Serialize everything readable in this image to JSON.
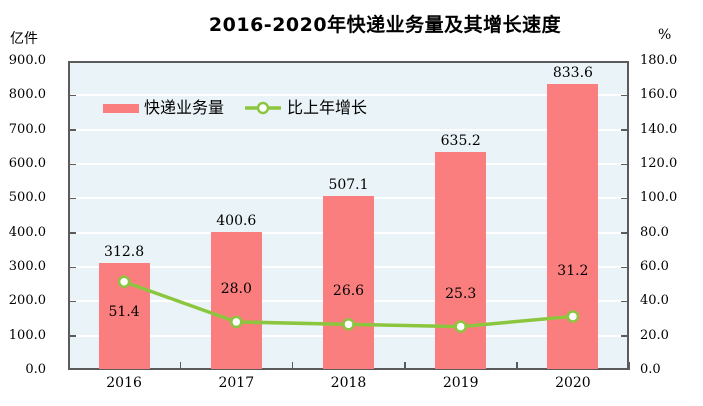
{
  "chart_data": {
    "type": "combo-bar-line",
    "title": "2016-2020年快递业务量及其增长速度",
    "categories": [
      "2016",
      "2017",
      "2018",
      "2019",
      "2020"
    ],
    "series": [
      {
        "name": "快递业务量",
        "type": "bar",
        "axis": "left",
        "values": [
          312.8,
          400.6,
          507.1,
          635.2,
          833.6
        ],
        "color": "#FB7E7E"
      },
      {
        "name": "比上年增长",
        "type": "line",
        "axis": "right",
        "values": [
          51.4,
          28.0,
          26.6,
          25.3,
          31.2
        ],
        "color": "#8CC63F",
        "marker_fill": "#FFFFFF"
      }
    ],
    "left_axis": {
      "unit": "亿件",
      "min": 0,
      "max": 900,
      "step": 100,
      "decimals": 1
    },
    "right_axis": {
      "unit": "%",
      "min": 0,
      "max": 180,
      "step": 20,
      "decimals": 1
    },
    "grid": true,
    "legend_position": "inside-top-left",
    "plot_background": "#EAF3F7",
    "gridline_color": "#FFFFFF",
    "axis_border_color": "#5b5b5b",
    "line_label_dy": [
      30,
      -33,
      -33,
      -33,
      -45
    ]
  }
}
